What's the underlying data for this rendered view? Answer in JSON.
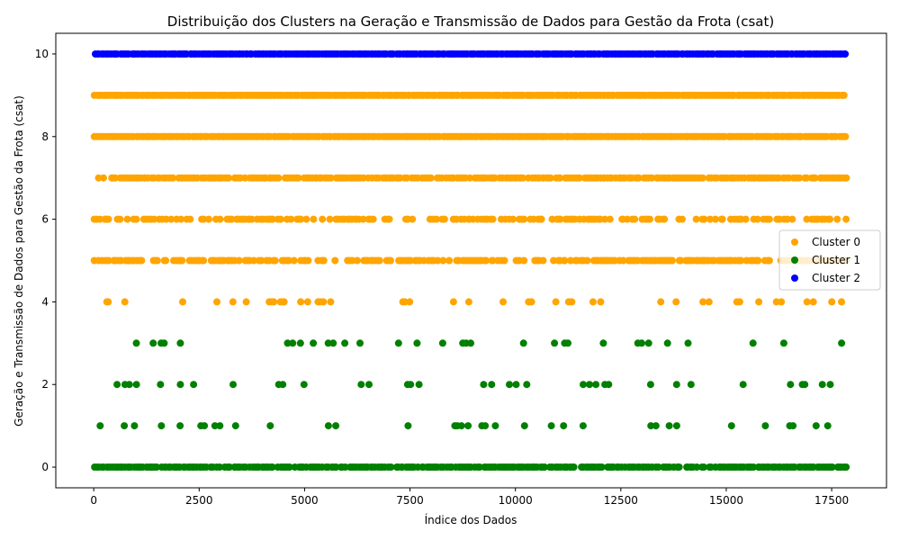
{
  "chart_data": {
    "type": "scatter",
    "title": "Distribuição dos Clusters na Geração e Transmissão de Dados para Gestão da Frota (csat)",
    "xlabel": "Índice dos Dados",
    "ylabel": "Geração e Transmissão de Dados para Gestão da Frota (csat)",
    "xlim": [
      -900,
      18800
    ],
    "ylim": [
      -0.5,
      10.5
    ],
    "x_ticks": [
      0,
      2500,
      5000,
      7500,
      10000,
      12500,
      15000,
      17500
    ],
    "x_tick_labels": [
      "0",
      "2500",
      "5000",
      "7500",
      "10000",
      "12500",
      "15000",
      "17500"
    ],
    "y_ticks": [
      0,
      2,
      4,
      6,
      8,
      10
    ],
    "y_tick_labels": [
      "0",
      "2",
      "4",
      "6",
      "8",
      "10"
    ],
    "grid": false,
    "legend_position": "center-right",
    "x_max_index": 17850,
    "series": [
      {
        "name": "Cluster 0",
        "color": "#ffa500",
        "levels": [
          {
            "y": 9,
            "density": 1.0
          },
          {
            "y": 8,
            "density": 1.0
          },
          {
            "y": 7,
            "density": 0.85
          },
          {
            "y": 6,
            "density": 0.55
          },
          {
            "y": 5,
            "density": 0.7
          },
          {
            "y": 4,
            "density": 0.14
          }
        ]
      },
      {
        "name": "Cluster 1",
        "color": "#008000",
        "levels": [
          {
            "y": 3,
            "density": 0.11
          },
          {
            "y": 2,
            "density": 0.1
          },
          {
            "y": 1,
            "density": 0.08
          },
          {
            "y": 0,
            "density": 0.9
          }
        ]
      },
      {
        "name": "Cluster 2",
        "color": "#0000ff",
        "levels": [
          {
            "y": 10,
            "density": 1.0
          }
        ]
      }
    ]
  }
}
